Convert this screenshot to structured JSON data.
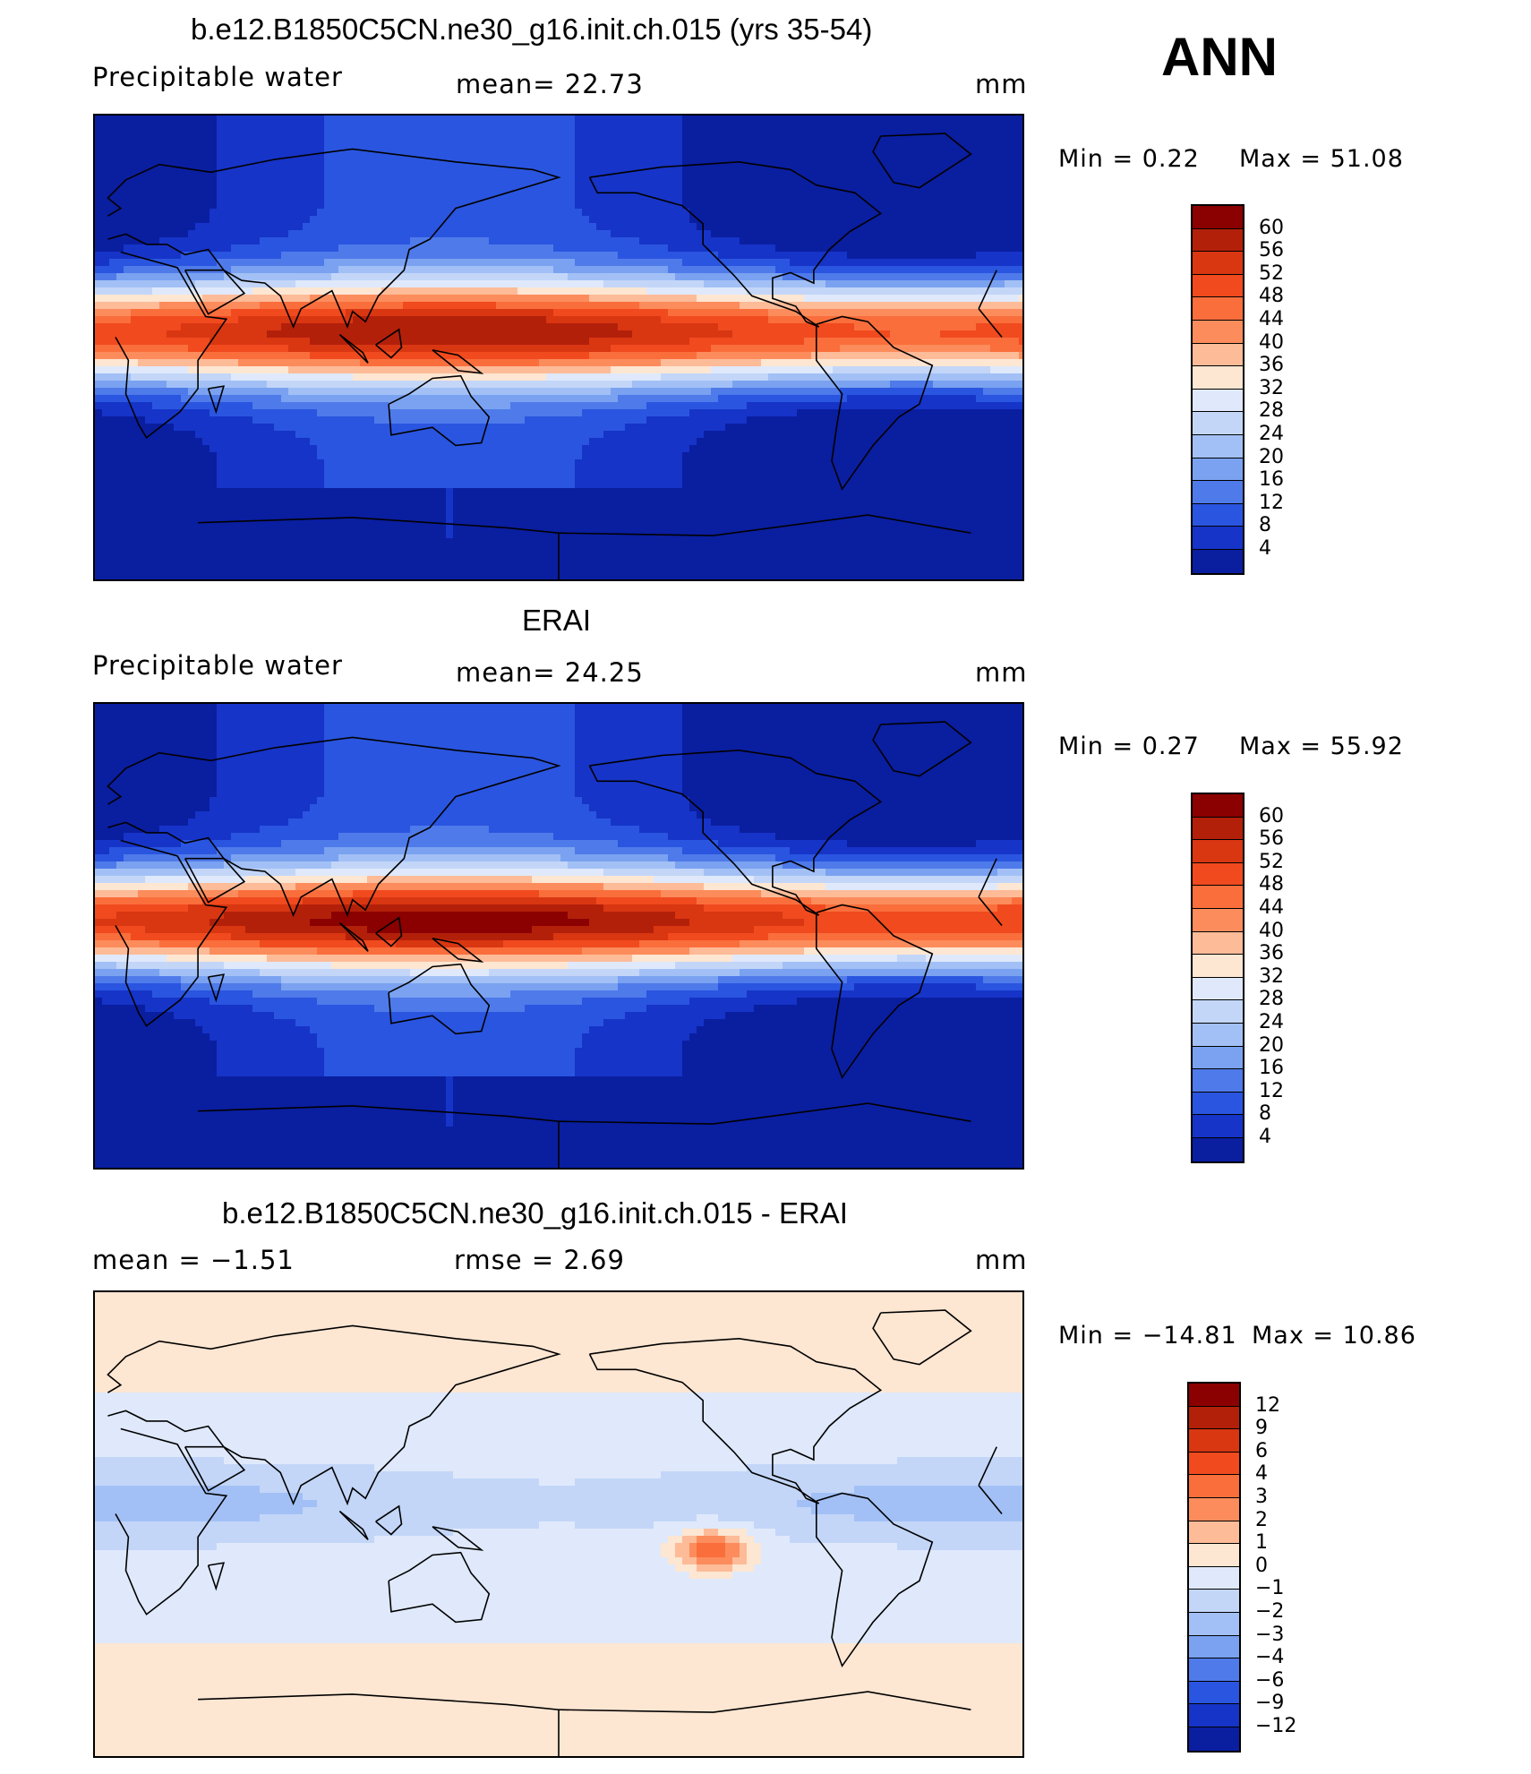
{
  "figure": {
    "season": "ANN",
    "units": "mm"
  },
  "panels": [
    {
      "id": "model",
      "title": "b.e12.B1850C5CN.ne30_g16.init.ch.015 (yrs 35-54)",
      "variable": "Precipitable  water",
      "stat_text": "mean=   22.73",
      "units": "mm",
      "min_text": "Min  =     0.22",
      "max_text": "Max  =    51.08",
      "colorbar": {
        "labels": [
          "60",
          "56",
          "52",
          "48",
          "44",
          "40",
          "36",
          "32",
          "28",
          "24",
          "20",
          "16",
          "12",
          "8",
          "4"
        ],
        "colors": [
          "#8b0000",
          "#b3200a",
          "#d93612",
          "#f04a1e",
          "#fa6e3c",
          "#fc8c5c",
          "#fdbb98",
          "#fde6d2",
          "#dfe9fb",
          "#c3d6f8",
          "#a2c0f5",
          "#7aa2f0",
          "#4f7aea",
          "#2a55e0",
          "#1634c8",
          "#0a1ea0"
        ],
        "fields": "model"
      }
    },
    {
      "id": "obs",
      "title": "ERAI",
      "variable": "Precipitable  water",
      "stat_text": "mean=   24.25",
      "units": "mm",
      "min_text": "Min  =     0.27",
      "max_text": "Max  =    55.92",
      "colorbar": {
        "labels": [
          "60",
          "56",
          "52",
          "48",
          "44",
          "40",
          "36",
          "32",
          "28",
          "24",
          "20",
          "16",
          "12",
          "8",
          "4"
        ],
        "colors": [
          "#8b0000",
          "#b3200a",
          "#d93612",
          "#f04a1e",
          "#fa6e3c",
          "#fc8c5c",
          "#fdbb98",
          "#fde6d2",
          "#dfe9fb",
          "#c3d6f8",
          "#a2c0f5",
          "#7aa2f0",
          "#4f7aea",
          "#2a55e0",
          "#1634c8",
          "#0a1ea0"
        ],
        "fields": "obs"
      }
    },
    {
      "id": "diff",
      "title": "b.e12.B1850C5CN.ne30_g16.init.ch.015 - ERAI",
      "variable": "mean  =    −1.51",
      "stat_text": "rmse  =     2.69",
      "units": "mm",
      "min_text": "Min  = −14.81",
      "max_text": "Max  =    10.86",
      "colorbar": {
        "labels": [
          "12",
          "9",
          "6",
          "4",
          "3",
          "2",
          "1",
          "0",
          "−1",
          "−2",
          "−3",
          "−4",
          "−6",
          "−9",
          "−12"
        ],
        "colors": [
          "#8b0000",
          "#b3200a",
          "#d93612",
          "#f04a1e",
          "#fa6e3c",
          "#fc8c5c",
          "#fdbb98",
          "#fde6d2",
          "#dfe9fb",
          "#c3d6f8",
          "#a2c0f5",
          "#7aa2f0",
          "#4f7aea",
          "#2a55e0",
          "#1634c8",
          "#0a1ea0"
        ],
        "fields": "diff"
      }
    }
  ]
}
